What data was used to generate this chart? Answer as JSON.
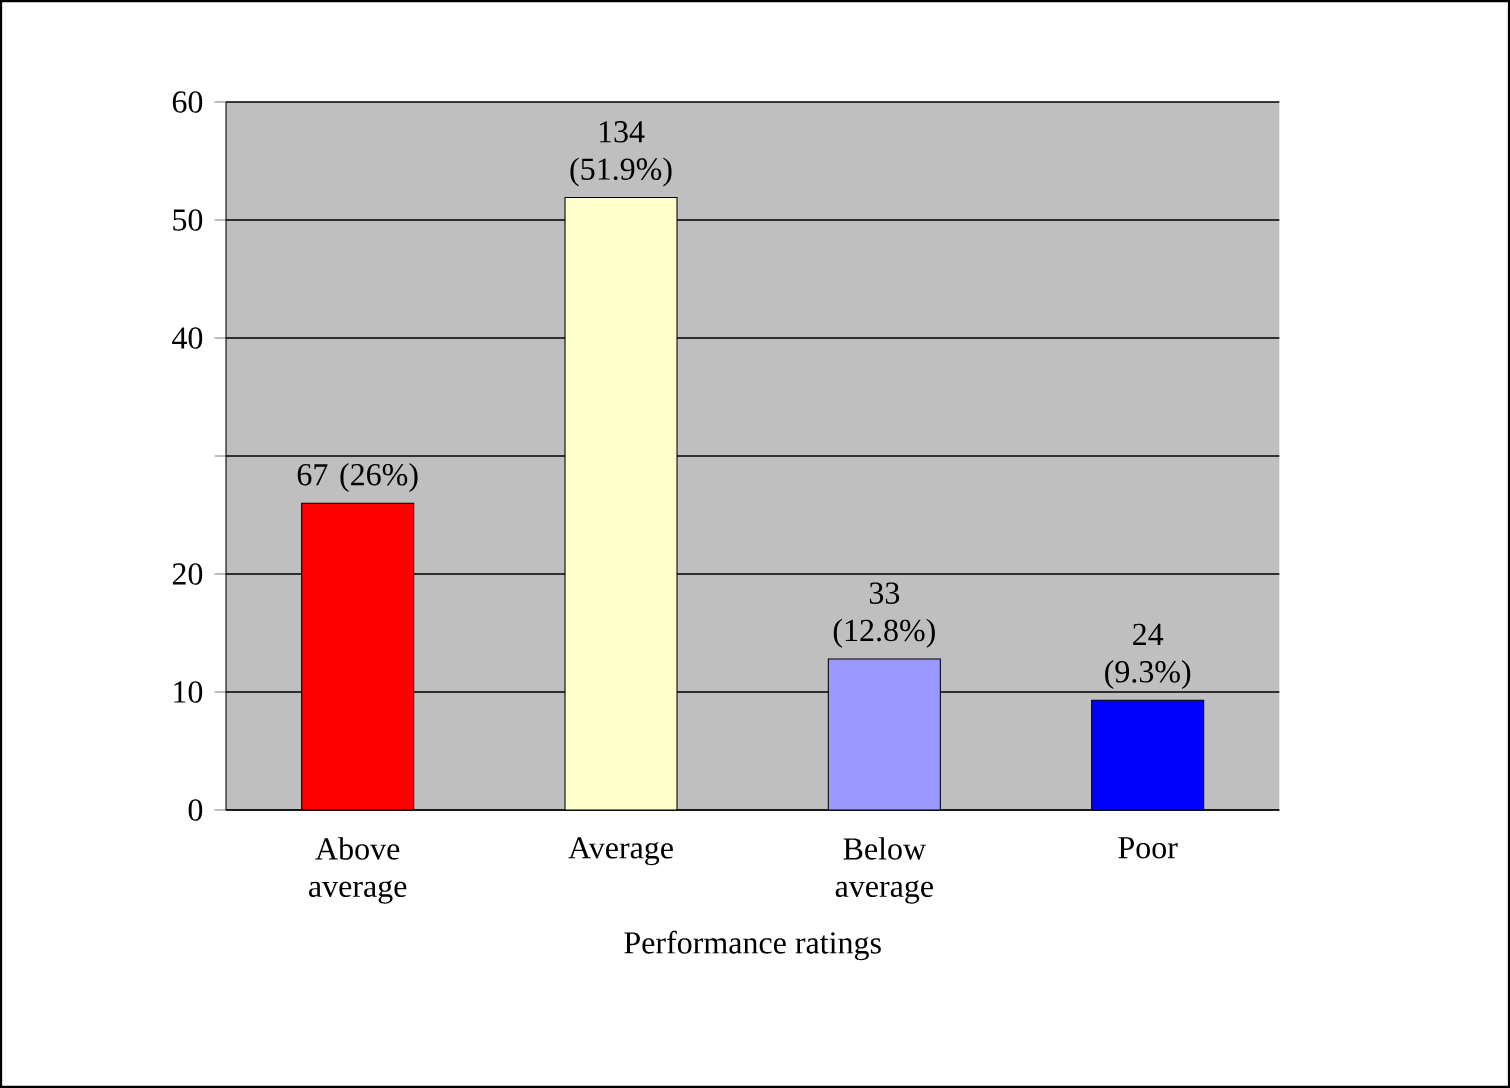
{
  "chart_data": {
    "type": "bar",
    "xlabel": "Performance ratings",
    "categories": [
      "Above average",
      "Average",
      "Below average",
      "Poor"
    ],
    "values": [
      26,
      51.9,
      12.8,
      9.3
    ],
    "colors": [
      "#ff0000",
      "#ffffcc",
      "#9999ff",
      "#0000ff"
    ],
    "value_labels": [
      "67 (26%)",
      "134 (51.9%)",
      "33 (12.8%)",
      "24 (9.3%)"
    ],
    "ylim": [
      0,
      60
    ],
    "yticks": [
      0,
      10,
      20,
      {
        "value": 30,
        "label": null
      },
      40,
      50,
      60
    ],
    "grid": "y"
  }
}
